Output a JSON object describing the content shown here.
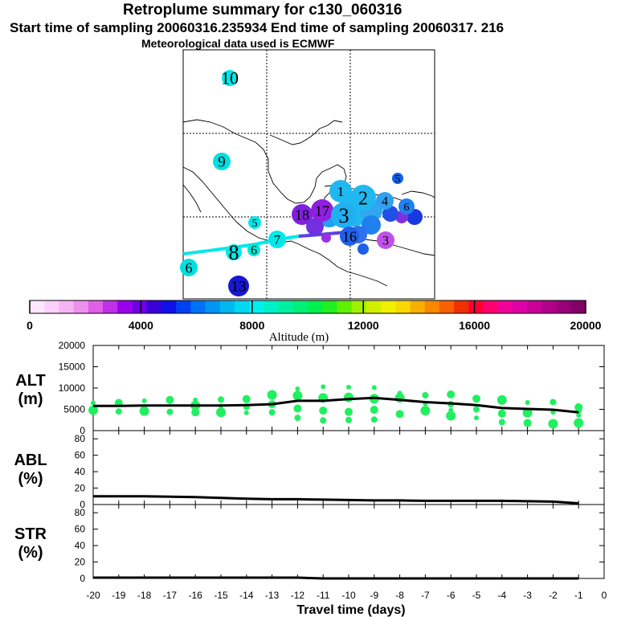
{
  "header": {
    "title": "Retroplume summary for c130_060316",
    "subtitle": "Start time of sampling 20060316.235934     End time of sampling 20060317.   216",
    "met": "Meteorological data used is ECMWF"
  },
  "colorbar": {
    "label": "Altitude (m)",
    "tick_labels": [
      "0",
      "4000",
      "8000",
      "12000",
      "16000",
      "20000"
    ],
    "colors": [
      "#ffe8ff",
      "#fbd0fb",
      "#f5b5f5",
      "#ee90ee",
      "#e060e8",
      "#c030e8",
      "#9a00ee",
      "#7000e6",
      "#3a00d8",
      "#1010e8",
      "#0040f0",
      "#0070f5",
      "#0095f5",
      "#00b8f0",
      "#00d8f0",
      "#00f0f0",
      "#00f0c8",
      "#00f0a0",
      "#00f078",
      "#00f050",
      "#20f020",
      "#60f000",
      "#a0f000",
      "#d0f000",
      "#f0f000",
      "#f8d800",
      "#f8b000",
      "#f88800",
      "#f86000",
      "#f03000",
      "#ff0030",
      "#ff0070",
      "#f00098",
      "#e000a8",
      "#c80098",
      "#b0008a",
      "#980078",
      "#800068"
    ]
  },
  "map": {
    "markers": [
      {
        "label": "10",
        "color": "#00e8e8"
      },
      {
        "label": "9",
        "color": "#00e0e0"
      },
      {
        "label": "5",
        "color": "#1060e8"
      },
      {
        "label": "1",
        "color": "#20b8f0"
      },
      {
        "label": "2",
        "color": "#20b8f0"
      },
      {
        "label": "4",
        "color": "#30a0f0"
      },
      {
        "label": "6",
        "color": "#2080f0"
      },
      {
        "label": "18",
        "color": "#8020e0"
      },
      {
        "label": "17",
        "color": "#9020e0"
      },
      {
        "label": "3",
        "color": "#20b0f0"
      },
      {
        "label": "5",
        "color": "#00e8e8"
      },
      {
        "label": "7",
        "color": "#00e8e8"
      },
      {
        "label": "8",
        "color": "#00e8e8"
      },
      {
        "label": "6",
        "color": "#00e8d8"
      },
      {
        "label": "16",
        "color": "#2060e8"
      },
      {
        "label": "3",
        "color": "#c050e8"
      },
      {
        "label": "6",
        "color": "#00e0e0"
      },
      {
        "label": "13",
        "color": "#1818d0"
      }
    ]
  },
  "chart_data": {
    "type": "scatter",
    "xlabel": "Travel time (days)",
    "x_ticks": [
      -20,
      -19,
      -18,
      -17,
      -16,
      -15,
      -14,
      -13,
      -12,
      -11,
      -10,
      -9,
      -8,
      -7,
      -6,
      -5,
      -4,
      -3,
      -2,
      -1,
      0
    ],
    "x_range": [
      -20,
      0
    ],
    "panels": [
      {
        "name": "ALT",
        "label_top": "ALT",
        "label_bottom": "(m)",
        "ylim": [
          0,
          20000
        ],
        "yticks": [
          0,
          5000,
          10000,
          15000,
          20000
        ],
        "line_x": [
          -20,
          -19,
          -18,
          -17,
          -16,
          -15,
          -14,
          -13,
          -12,
          -11,
          -10,
          -9,
          -8,
          -7,
          -6,
          -5,
          -4,
          -3,
          -2,
          -1
        ],
        "line_y": [
          5800,
          5800,
          5900,
          5900,
          5900,
          5900,
          6000,
          6200,
          7000,
          7000,
          7400,
          7700,
          7200,
          6700,
          6400,
          6000,
          5300,
          5100,
          4900,
          4300
        ],
        "points": [
          {
            "x": -20,
            "y": 6500
          },
          {
            "x": -20,
            "y": 4800
          },
          {
            "x": -19,
            "y": 6500
          },
          {
            "x": -19,
            "y": 4500
          },
          {
            "x": -18,
            "y": 7000
          },
          {
            "x": -18,
            "y": 4600
          },
          {
            "x": -17,
            "y": 7200
          },
          {
            "x": -17,
            "y": 4400
          },
          {
            "x": -16,
            "y": 7200
          },
          {
            "x": -16,
            "y": 5900
          },
          {
            "x": -16,
            "y": 4300
          },
          {
            "x": -15,
            "y": 7300
          },
          {
            "x": -15,
            "y": 5800
          },
          {
            "x": -15,
            "y": 4300
          },
          {
            "x": -14,
            "y": 7400
          },
          {
            "x": -14,
            "y": 5600
          },
          {
            "x": -14,
            "y": 4200
          },
          {
            "x": -13,
            "y": 8400
          },
          {
            "x": -13,
            "y": 6200
          },
          {
            "x": -13,
            "y": 4300
          },
          {
            "x": -12,
            "y": 9800
          },
          {
            "x": -12,
            "y": 8200
          },
          {
            "x": -12,
            "y": 5200
          },
          {
            "x": -12,
            "y": 3000
          },
          {
            "x": -11,
            "y": 10300
          },
          {
            "x": -11,
            "y": 7700
          },
          {
            "x": -11,
            "y": 4700
          },
          {
            "x": -11,
            "y": 2400
          },
          {
            "x": -10,
            "y": 10200
          },
          {
            "x": -10,
            "y": 7800
          },
          {
            "x": -10,
            "y": 4400
          },
          {
            "x": -10,
            "y": 2500
          },
          {
            "x": -9,
            "y": 10100
          },
          {
            "x": -9,
            "y": 7500
          },
          {
            "x": -9,
            "y": 4900
          },
          {
            "x": -9,
            "y": 2600
          },
          {
            "x": -8,
            "y": 8800
          },
          {
            "x": -8,
            "y": 7700
          },
          {
            "x": -8,
            "y": 3900
          },
          {
            "x": -7,
            "y": 8300
          },
          {
            "x": -7,
            "y": 6300
          },
          {
            "x": -7,
            "y": 4700
          },
          {
            "x": -6,
            "y": 8500
          },
          {
            "x": -6,
            "y": 6200
          },
          {
            "x": -6,
            "y": 4800
          },
          {
            "x": -6,
            "y": 3500
          },
          {
            "x": -5,
            "y": 7500
          },
          {
            "x": -5,
            "y": 5000
          },
          {
            "x": -5,
            "y": 3000
          },
          {
            "x": -4,
            "y": 7200
          },
          {
            "x": -4,
            "y": 4000
          },
          {
            "x": -4,
            "y": 2000
          },
          {
            "x": -3,
            "y": 6600
          },
          {
            "x": -3,
            "y": 4200
          },
          {
            "x": -3,
            "y": 1800
          },
          {
            "x": -2,
            "y": 6700
          },
          {
            "x": -2,
            "y": 4300
          },
          {
            "x": -2,
            "y": 1600
          },
          {
            "x": -1,
            "y": 5500
          },
          {
            "x": -1,
            "y": 4700
          },
          {
            "x": -1,
            "y": 3600
          },
          {
            "x": -1,
            "y": 1800
          }
        ]
      },
      {
        "name": "ABL",
        "label_top": "ABL",
        "label_bottom": "(%)",
        "ylim": [
          0,
          90
        ],
        "yticks": [
          0,
          20,
          40,
          60,
          80
        ],
        "line_x": [
          -20,
          -19,
          -18,
          -17,
          -16,
          -15,
          -14,
          -13,
          -12,
          -11,
          -10,
          -9,
          -8,
          -7,
          -6,
          -5,
          -4,
          -3,
          -2,
          -1
        ],
        "line_y": [
          10,
          10,
          10,
          9.5,
          9,
          8,
          7,
          6.5,
          6.5,
          6,
          5.5,
          5,
          5,
          4.5,
          4.5,
          4.5,
          4.5,
          4,
          3.5,
          1.5
        ]
      },
      {
        "name": "STR",
        "label_top": "STR",
        "label_bottom": "(%)",
        "ylim": [
          0,
          90
        ],
        "yticks": [
          0,
          20,
          40,
          60,
          80
        ],
        "line_x": [
          -20,
          -19,
          -18,
          -17,
          -16,
          -15,
          -14,
          -13,
          -12,
          -11,
          -10,
          -9,
          -8,
          -7,
          -6,
          -5,
          -4,
          -3,
          -2,
          -1
        ],
        "line_y": [
          1,
          1,
          1,
          1,
          1,
          1,
          1,
          1,
          1,
          0,
          0,
          0,
          0,
          0,
          0,
          0,
          0,
          0,
          0,
          0
        ]
      }
    ]
  }
}
